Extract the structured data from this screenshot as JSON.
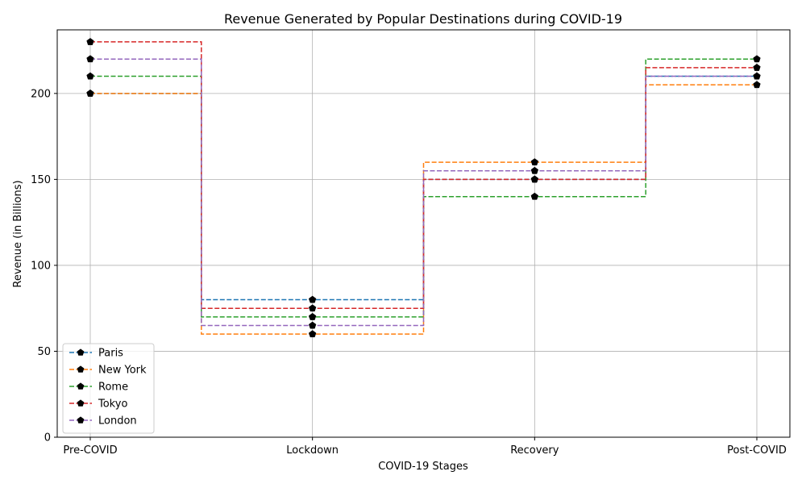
{
  "chart_data": {
    "type": "line",
    "step": "mid",
    "title": "Revenue Generated by Popular Destinations during COVID-19",
    "xlabel": "COVID-19 Stages",
    "ylabel": "Revenue (in Billions)",
    "categories": [
      "Pre-COVID",
      "Lockdown",
      "Recovery",
      "Post-COVID"
    ],
    "ylim": [
      0,
      237
    ],
    "yticks": [
      0,
      50,
      100,
      150,
      200
    ],
    "grid": true,
    "legend_position": "lower-left",
    "line_style": "dashed",
    "marker": "pentagon",
    "marker_color": "#000000",
    "series": [
      {
        "name": "Paris",
        "color": "#1f77b4",
        "values": [
          200,
          80,
          150,
          210
        ]
      },
      {
        "name": "New York",
        "color": "#ff7f0e",
        "values": [
          200,
          60,
          160,
          205
        ]
      },
      {
        "name": "Rome",
        "color": "#2ca02c",
        "values": [
          210,
          70,
          140,
          220
        ]
      },
      {
        "name": "Tokyo",
        "color": "#d62728",
        "values": [
          230,
          75,
          150,
          215
        ]
      },
      {
        "name": "London",
        "color": "#9467bd",
        "values": [
          220,
          65,
          155,
          210
        ]
      }
    ]
  }
}
